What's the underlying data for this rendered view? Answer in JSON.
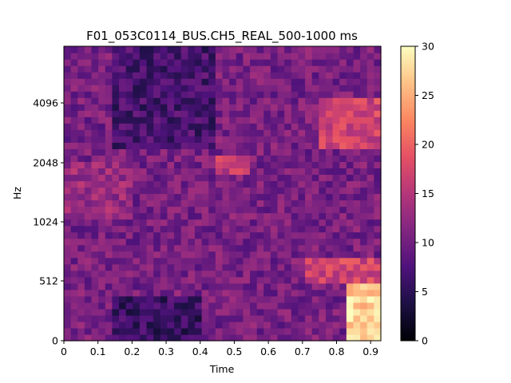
{
  "chart_data": {
    "type": "heatmap",
    "title": "F01_053C0114_BUS.CH5_REAL_500-1000 ms",
    "xlabel": "Time",
    "ylabel": "Hz",
    "xlim": [
      0,
      0.93
    ],
    "x_ticks": [
      "0",
      "0.1",
      "0.2",
      "0.3",
      "0.4",
      "0.5",
      "0.6",
      "0.7",
      "0.8",
      "0.9"
    ],
    "y_ticks": [
      "0",
      "512",
      "1024",
      "2048",
      "4096"
    ],
    "colormap": "magma",
    "colorbar": {
      "min": 0,
      "max": 30,
      "ticks": [
        "0",
        "5",
        "10",
        "15",
        "20",
        "25",
        "30"
      ]
    },
    "grid_size": {
      "time_bins": 46,
      "freq_bins": 46
    },
    "x_centers": [
      0.01,
      0.03,
      0.051,
      0.071,
      0.091,
      0.111,
      0.131,
      0.152,
      0.172,
      0.192
    ],
    "y_ticks_values": [
      0,
      512,
      1024,
      2048,
      4096
    ],
    "regions": [
      {
        "t": [
          0.82,
          0.93
        ],
        "f": [
          0,
          512
        ],
        "level": 27,
        "label": ""
      },
      {
        "t": [
          0.7,
          0.93
        ],
        "f": [
          512,
          700
        ],
        "level": 17
      },
      {
        "t": [
          0.74,
          0.93
        ],
        "f": [
          2500,
          4500
        ],
        "level": 17
      },
      {
        "t": [
          0.45,
          0.55
        ],
        "f": [
          1900,
          2400
        ],
        "level": 16
      },
      {
        "t": [
          0.15,
          0.45
        ],
        "f": [
          2500,
          8000
        ],
        "level": 7
      },
      {
        "t": [
          0.15,
          0.4
        ],
        "f": [
          0,
          400
        ],
        "level": 6
      },
      {
        "t": [
          0.0,
          0.2
        ],
        "f": [
          1024,
          2048
        ],
        "level": 13
      }
    ]
  }
}
